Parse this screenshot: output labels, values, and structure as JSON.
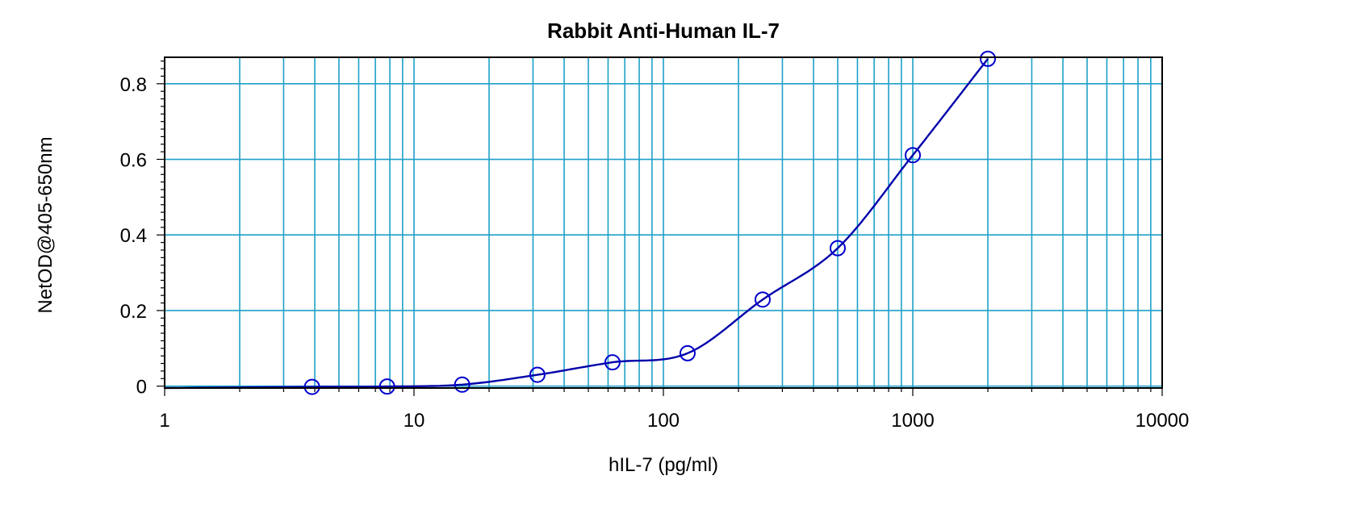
{
  "chart_data": {
    "type": "scatter",
    "title": "Rabbit Anti-Human IL-7",
    "xlabel": "hIL-7 (pg/ml)",
    "ylabel": "NetOD@405-650nm",
    "x_scale": "log",
    "xlim": [
      1,
      10000
    ],
    "ylim": [
      -0.005,
      0.87
    ],
    "x_ticks": [
      "1",
      "10",
      "100",
      "1000",
      "10000"
    ],
    "y_ticks": [
      "0",
      "0.2",
      "0.4",
      "0.6",
      "0.8"
    ],
    "grid": true,
    "series": [
      {
        "x": [
          3.9,
          7.8,
          15.6,
          31.25,
          62.5,
          125,
          250,
          500,
          1000,
          2000
        ],
        "values": [
          -0.002,
          -0.001,
          0.004,
          0.03,
          0.063,
          0.087,
          0.229,
          0.365,
          0.611,
          0.866
        ]
      }
    ],
    "fit_curve": true,
    "colors": {
      "points": "#0000cc",
      "curve": "#0000aa",
      "grid": "#1ea0c8",
      "frame": "#000000"
    }
  }
}
